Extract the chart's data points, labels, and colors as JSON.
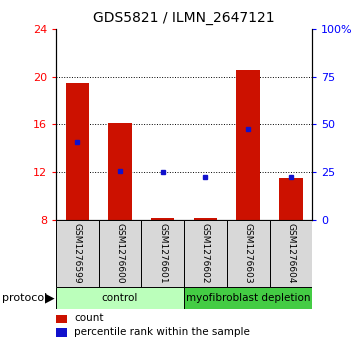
{
  "title": "GDS5821 / ILMN_2647121",
  "samples": [
    "GSM1276599",
    "GSM1276600",
    "GSM1276601",
    "GSM1276602",
    "GSM1276603",
    "GSM1276604"
  ],
  "count_values": [
    19.5,
    16.1,
    8.15,
    8.15,
    20.6,
    11.5
  ],
  "percentile_values": [
    14.5,
    12.1,
    12.0,
    11.6,
    15.6,
    11.6
  ],
  "y_min": 8,
  "y_max": 24,
  "y_ticks": [
    8,
    12,
    16,
    20,
    24
  ],
  "y2_ticks": [
    0,
    25,
    50,
    75,
    100
  ],
  "bar_color": "#cc1100",
  "percentile_color": "#1111cc",
  "protocol_labels": [
    "control",
    "myofibroblast depletion"
  ],
  "protocol_groups": [
    3,
    3
  ],
  "protocol_color_light": "#bbffbb",
  "protocol_color_dark": "#44cc44",
  "bg_color": "#d8d8d8",
  "bar_width": 0.55,
  "title_fontsize": 10
}
